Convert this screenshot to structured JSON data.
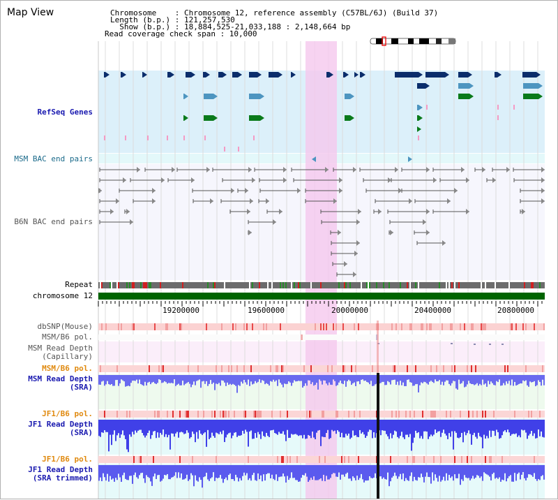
{
  "title": "Map View",
  "header": {
    "chromosome_line": "Chromosome    : Chromosome 12, reference assembly (C57BL/6J) (Build 37)",
    "length_line": "Length (b.p.) : 121,257,530",
    "show_line": "  Show (b.p.) : 18,884,525-21,033,188 : 2,148,664 bp",
    "coverage_line": "Read coverage check span : 10,000"
  },
  "tracks": {
    "refseq": "RefSeq Genes",
    "msm_bac": "MSM BAC end pairs",
    "b6n_bac": "B6N BAC end pairs",
    "repeat": "Repeat",
    "chromosome": "chromosome 12",
    "dbsnp": "dbSNP(Mouse)",
    "msm_b6_pol_a": "MSM/B6 pol.",
    "msm_read_depth_cap": "MSM Read Depth\n(Capillary)",
    "msm_b6_pol_b": "MSM/B6 pol.",
    "msm_read_depth_sra": "MSM Read Depth\n(SRA)",
    "jf1_b6_pol_a": "JF1/B6 pol.",
    "jf1_read_depth_sra": "JF1 Read Depth\n(SRA)",
    "jf1_b6_pol_b": "JF1/B6 pol.",
    "jf1_read_depth_trim": "JF1 Read Depth\n(SRA trimmed)"
  },
  "axis": {
    "ticks": [
      "19200000",
      "19600000",
      "20000000",
      "20400000",
      "20800000"
    ]
  },
  "colors": {
    "highlight": "#f5c8ee",
    "chromosome_bar": "#006400",
    "gene_dark": "#0b2d6b",
    "gene_mid": "#4d95c0",
    "gene_green": "#0a7a1a",
    "depth": "#4a4ae8"
  }
}
